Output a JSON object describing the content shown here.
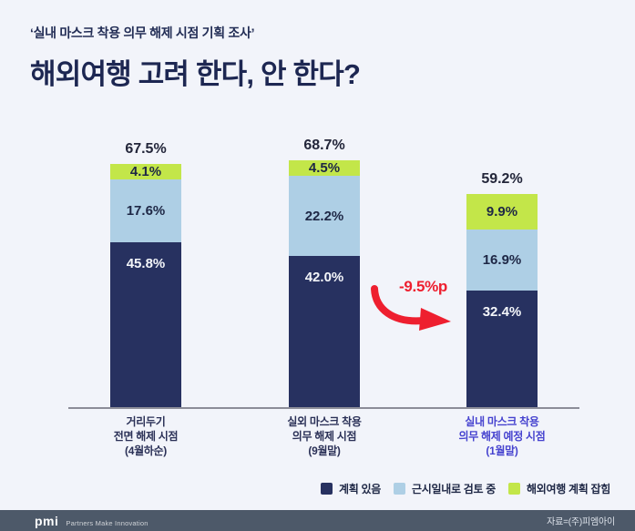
{
  "header": {
    "subtitle": "‘실내 마스크 착용 의무 해제 시점 기획 조사’",
    "title": "해외여행 고려 한다, 안 한다?"
  },
  "chart_data": {
    "type": "bar",
    "variant": "stacked",
    "unit": "%",
    "title": "해외여행 고려 한다, 안 한다?",
    "grid": false,
    "legend_position": "bottom",
    "legend": [
      {
        "label": "계획 있음",
        "color": "#273160"
      },
      {
        "label": "근시일내로 검토 중",
        "color": "#aecfe5"
      },
      {
        "label": "해외여행 계획 잡힘",
        "color": "#c3e649"
      }
    ],
    "bars": [
      {
        "category": [
          "거리두기",
          "전면 해제 시점",
          "(4월하순)"
        ],
        "total": 67.5,
        "total_label": "67.5%",
        "segments": [
          {
            "name": "계획 있음",
            "value": 45.8,
            "label": "45.8%"
          },
          {
            "name": "근시일내로 검토 중",
            "value": 17.6,
            "label": "17.6%"
          },
          {
            "name": "해외여행 계획 잡힘",
            "value": 4.1,
            "label": "4.1%"
          }
        ]
      },
      {
        "category": [
          "실외 마스크 착용",
          "의무 해제 시점",
          "(9월말)"
        ],
        "total": 68.7,
        "total_label": "68.7%",
        "segments": [
          {
            "name": "계획 있음",
            "value": 42.0,
            "label": "42.0%"
          },
          {
            "name": "근시일내로 검토 중",
            "value": 22.2,
            "label": "22.2%"
          },
          {
            "name": "해외여행 계획 잡힘",
            "value": 4.5,
            "label": "4.5%"
          }
        ]
      },
      {
        "category": [
          "실내 마스크 착용",
          "의무 해제 예정 시점",
          "(1월말)"
        ],
        "total": 59.2,
        "total_label": "59.2%",
        "highlighted": true,
        "segments": [
          {
            "name": "계획 있음",
            "value": 32.4,
            "label": "32.4%"
          },
          {
            "name": "근시일내로 검토 중",
            "value": 16.9,
            "label": "16.9%"
          },
          {
            "name": "해외여행 계획 잡힘",
            "value": 9.9,
            "label": "9.9%"
          }
        ]
      }
    ],
    "annotation": {
      "text": "-9.5%p",
      "color": "#ee1f2f"
    }
  },
  "footer": {
    "logo": "pmi",
    "tagline": "Partners Make Innovation",
    "source": "자료=(주)피엠아이"
  }
}
